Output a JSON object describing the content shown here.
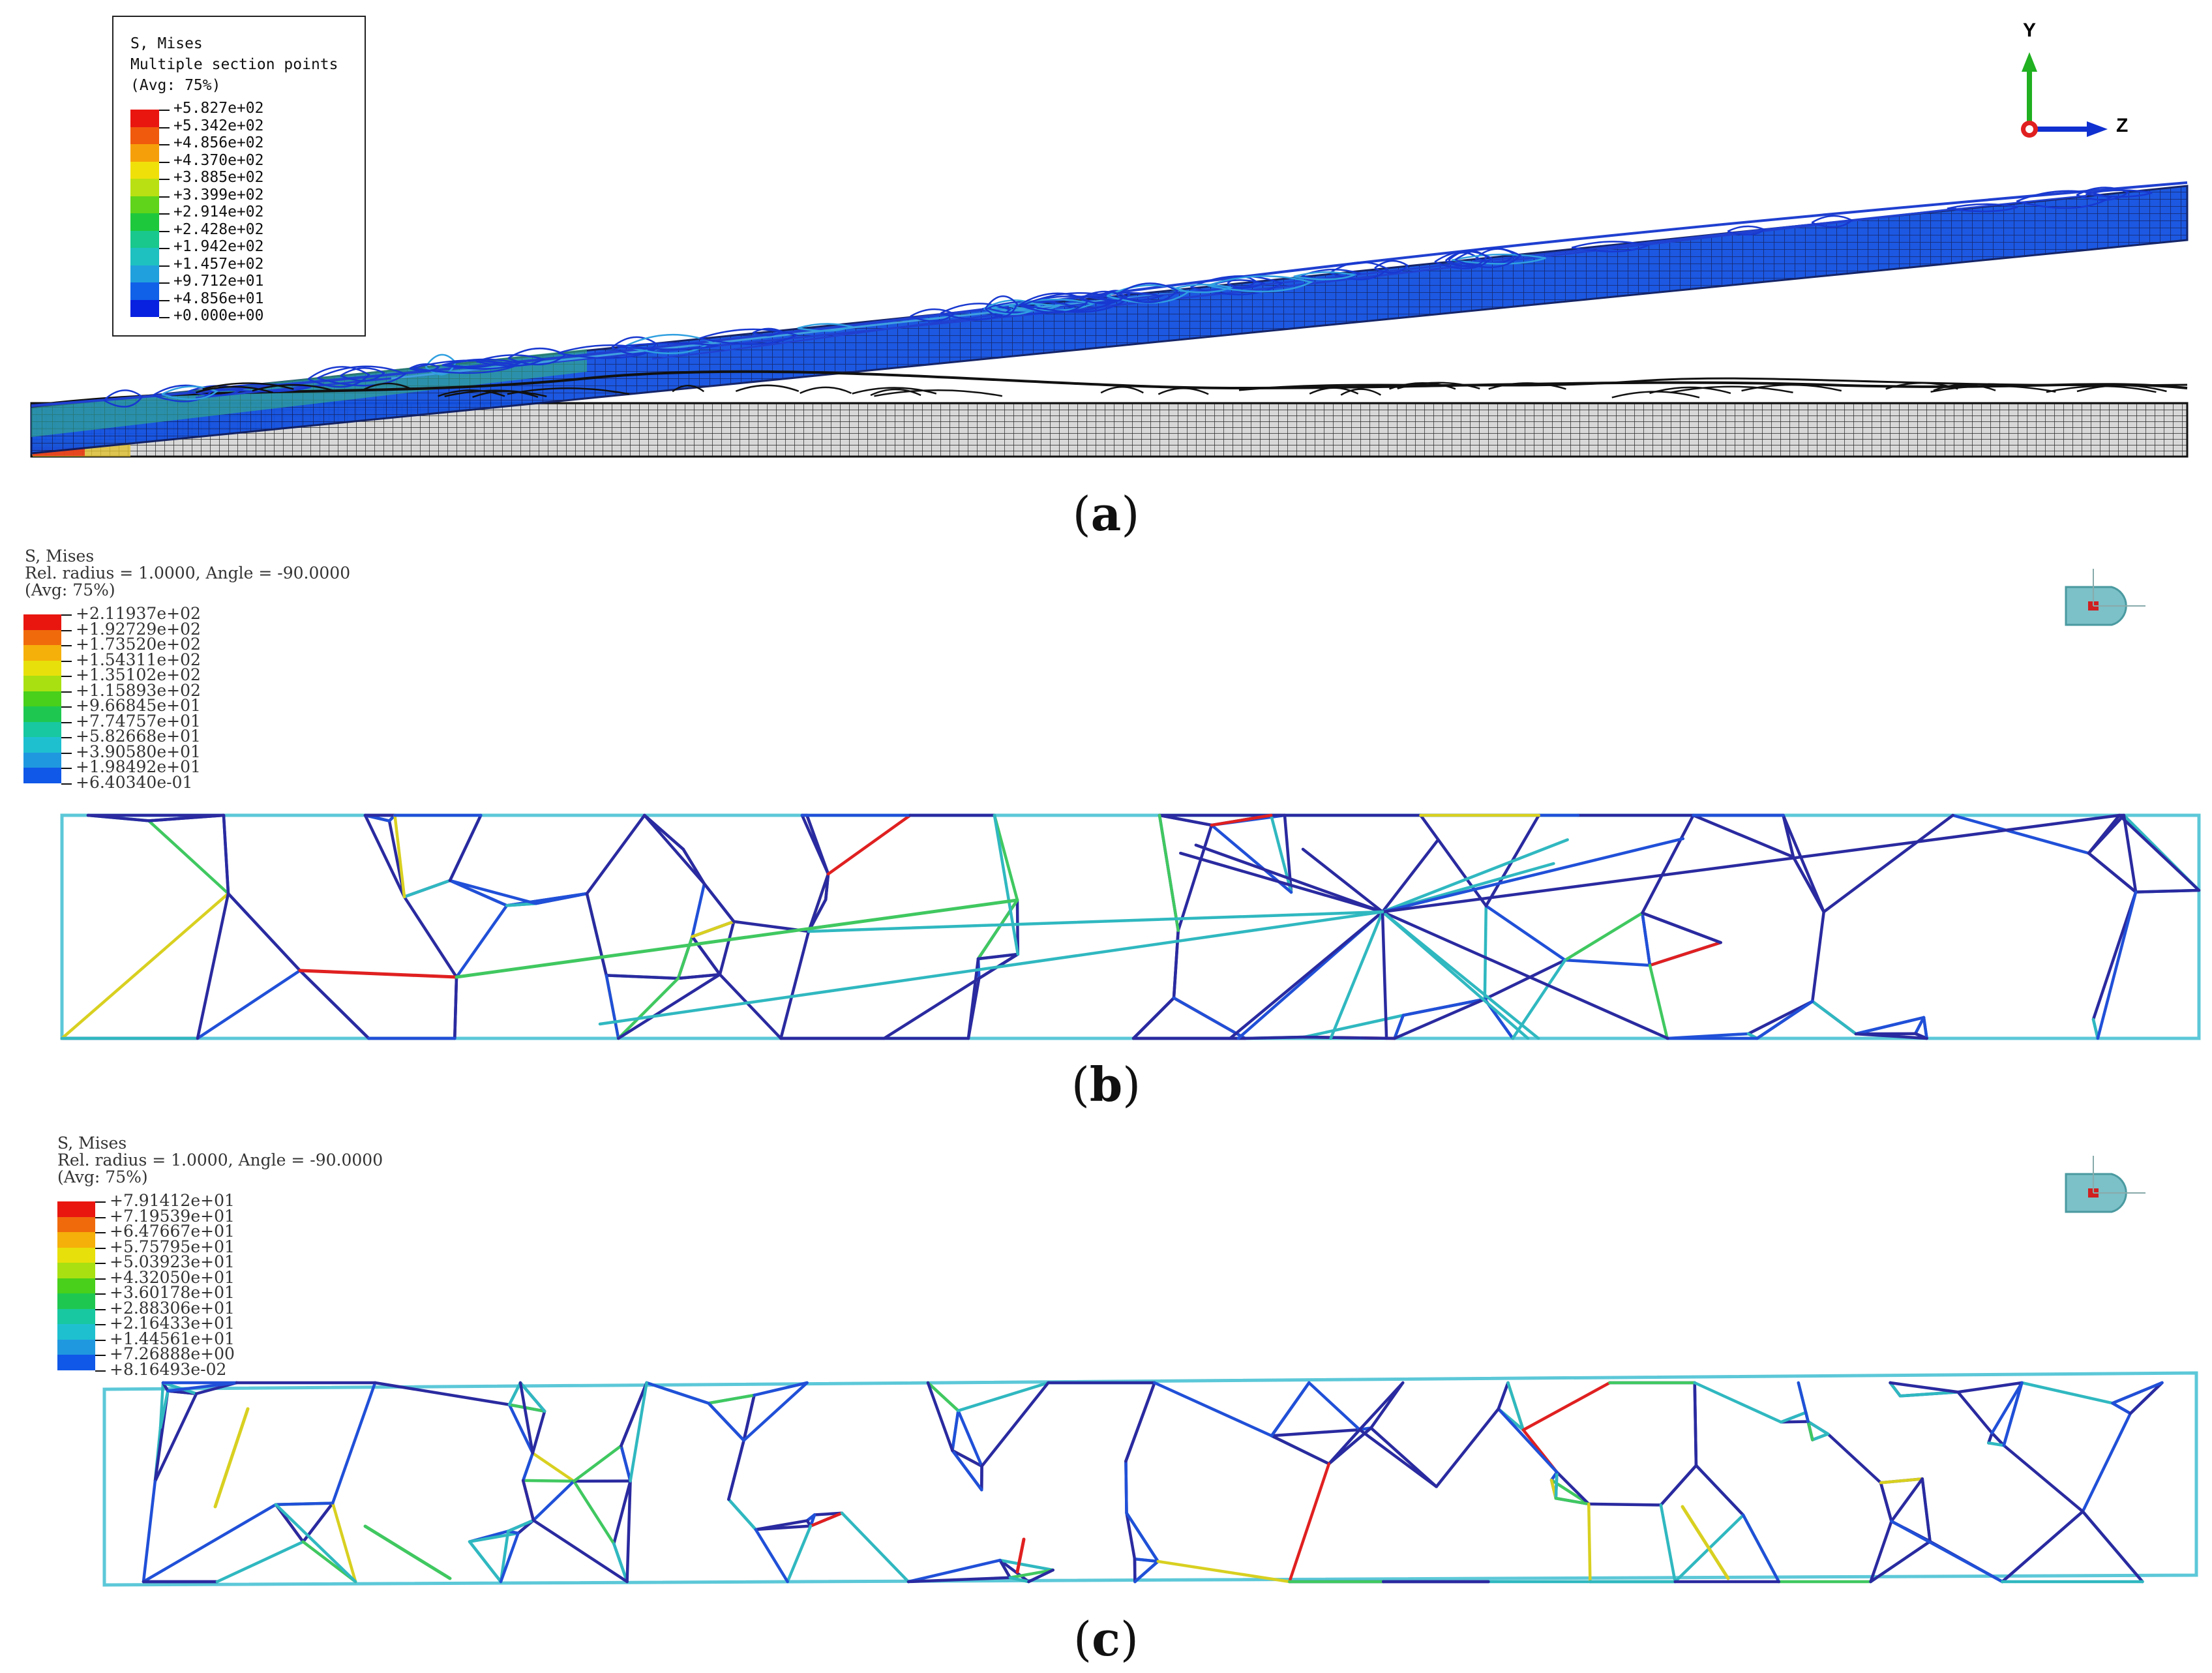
{
  "panel_a": {
    "caption_letter": "a",
    "legend": {
      "title": "S, Mises",
      "line2": "Multiple section points",
      "line3": "(Avg: 75%)",
      "values": [
        "+5.827e+02",
        "+5.342e+02",
        "+4.856e+02",
        "+4.370e+02",
        "+3.885e+02",
        "+3.399e+02",
        "+2.914e+02",
        "+2.428e+02",
        "+1.942e+02",
        "+1.457e+02",
        "+9.712e+01",
        "+4.856e+01",
        "+0.000e+00"
      ],
      "colors": [
        "#e8160f",
        "#f05a0c",
        "#f5a00a",
        "#f0e00a",
        "#b8e012",
        "#5fd41a",
        "#1ec83c",
        "#18c88c",
        "#1ec0c0",
        "#20a0dc",
        "#1060e8",
        "#0820e0"
      ]
    },
    "axis_triad": {
      "y_label": "Y",
      "z_label": "Z"
    }
  },
  "panel_b": {
    "caption_letter": "b",
    "legend": {
      "title": "S, Mises",
      "line2": "Rel. radius = 1.0000, Angle = -90.0000",
      "line3": "(Avg: 75%)",
      "values": [
        "+2.11937e+02",
        "+1.92729e+02",
        "+1.73520e+02",
        "+1.54311e+02",
        "+1.35102e+02",
        "+1.15893e+02",
        "+9.66845e+01",
        "+7.74757e+01",
        "+5.82668e+01",
        "+3.90580e+01",
        "+1.98492e+01",
        "+6.40340e-01"
      ],
      "colors": [
        "#e8160f",
        "#f06a0c",
        "#f5b00a",
        "#e8e00a",
        "#a8e012",
        "#48d01a",
        "#1ec850",
        "#18c8a0",
        "#1ec0d0",
        "#2098e0",
        "#1058e8",
        "#0820d8"
      ]
    }
  },
  "panel_c": {
    "caption_letter": "c",
    "legend": {
      "title": "S, Mises",
      "line2": "Rel. radius = 1.0000, Angle = -90.0000",
      "line3": "(Avg: 75%)",
      "values": [
        "+7.91412e+01",
        "+7.19539e+01",
        "+6.47667e+01",
        "+5.75795e+01",
        "+5.03923e+01",
        "+4.32050e+01",
        "+3.60178e+01",
        "+2.88306e+01",
        "+2.16433e+01",
        "+1.44561e+01",
        "+7.26888e+00",
        "+8.16493e-02"
      ],
      "colors": [
        "#e8160f",
        "#f06a0c",
        "#f5b00a",
        "#e8e00a",
        "#a8e012",
        "#48d01a",
        "#1ec850",
        "#18c8a0",
        "#1ec0d0",
        "#2098e0",
        "#1058e8",
        "#0820d8"
      ]
    }
  },
  "line_colors": {
    "frame": "#5cc8d8",
    "dark_blue": "#2a2aa0",
    "blue": "#2050d8",
    "teal": "#30b8c0",
    "green": "#40c860",
    "yellow": "#d8d020",
    "red": "#e02020"
  },
  "icons": [
    "axis-triad-icon",
    "view-orientation-icon"
  ]
}
